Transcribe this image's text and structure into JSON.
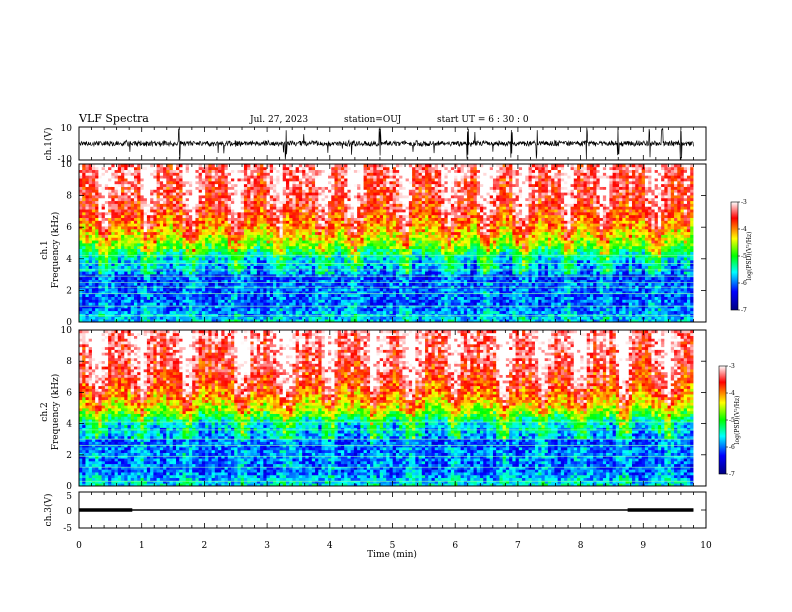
{
  "header": {
    "title": "VLF Spectra",
    "date": "Jul. 27, 2023",
    "station": "station=OUJ",
    "start": "start UT =  6 : 30 : 0"
  },
  "colors": {
    "trace": "#000000",
    "colormap": [
      "#000080",
      "#0000ff",
      "#00ffff",
      "#00ff00",
      "#ffff00",
      "#ff0000",
      "#ffffff"
    ]
  },
  "chart_data": [
    {
      "id": "ch1-waveform",
      "type": "line",
      "ylabel": "ch.1(V)",
      "ylim": [
        -10,
        10
      ],
      "yticks": [
        "10",
        "-10"
      ],
      "x": [
        0,
        0.5,
        1.0,
        1.5,
        2.0,
        2.5,
        3.0,
        3.5,
        4.0,
        4.5,
        5.0,
        5.5,
        6.0,
        6.5,
        7.0,
        7.5,
        8.0,
        8.5,
        9.0,
        9.5,
        9.8
      ],
      "y_center": [
        0,
        0,
        0,
        0,
        0,
        0,
        0,
        0,
        0,
        0,
        0,
        0,
        0,
        0,
        0,
        0,
        0,
        0,
        0,
        0,
        0
      ],
      "amplitude": 2,
      "spike_x": [
        1.6,
        3.3,
        4.8,
        6.2,
        6.9,
        7.3,
        8.1,
        8.6,
        9.1,
        9.3,
        9.6
      ]
    },
    {
      "id": "ch1-spectrogram",
      "type": "heatmap",
      "ylabel": "ch.1",
      "ylabel2": "Frequency (kHz)",
      "ylim": [
        0,
        10
      ],
      "yticks": [
        "0",
        "2",
        "4",
        "6",
        "8",
        "10"
      ],
      "colorbar": {
        "label": "log(PSD)(V²/Hz)",
        "range": [
          -7,
          -3
        ],
        "ticks": [
          "-3",
          "-4",
          "-5",
          "-6",
          "-7"
        ]
      },
      "psd_profile_freq_khz": [
        0,
        1,
        2,
        3,
        4,
        5,
        6,
        7,
        8,
        9,
        10
      ],
      "psd_profile_log": [
        -5.8,
        -6.2,
        -6.2,
        -6.3,
        -6.0,
        -5.0,
        -4.4,
        -4.0,
        -3.8,
        -3.7,
        -3.6
      ],
      "line_freqs_khz": [
        0.4,
        1.0,
        1.8,
        2.2,
        2.5,
        2.9,
        3.3,
        3.7,
        4.2
      ],
      "bursts_min": [
        0.4,
        1.1,
        1.8,
        2.5,
        3.2,
        3.9,
        4.4,
        5.2,
        5.9,
        6.5,
        7.1,
        7.8,
        8.4,
        9.2
      ]
    },
    {
      "id": "ch2-spectrogram",
      "type": "heatmap",
      "ylabel": "ch.2",
      "ylabel2": "Frequency (kHz)",
      "ylim": [
        0,
        10
      ],
      "yticks": [
        "0",
        "2",
        "4",
        "6",
        "8",
        "10"
      ],
      "colorbar": {
        "label": "log(PSD)(V²/Hz)",
        "range": [
          -7,
          -3
        ],
        "ticks": [
          "-3",
          "-4",
          "-5",
          "-6",
          "-7"
        ]
      },
      "psd_profile_freq_khz": [
        0,
        1,
        2,
        3,
        4,
        5,
        6,
        7,
        8,
        9,
        10
      ],
      "psd_profile_log": [
        -5.7,
        -6.2,
        -6.1,
        -6.2,
        -5.9,
        -4.8,
        -4.2,
        -3.9,
        -3.7,
        -3.6,
        -3.5
      ],
      "line_freqs_khz": [
        0.3,
        1.2,
        1.9,
        2.6,
        3.0,
        3.6,
        4.1
      ],
      "bursts_min": [
        0.3,
        1.0,
        1.7,
        2.6,
        3.3,
        4.0,
        4.7,
        5.3,
        6.0,
        6.8,
        7.4,
        8.0,
        8.7,
        9.4
      ]
    },
    {
      "id": "ch3-waveform",
      "type": "line",
      "ylabel": "ch.3(V)",
      "ylim": [
        -5,
        5
      ],
      "yticks": [
        "5",
        "0",
        "-5"
      ],
      "x": [
        0,
        0.85,
        8.75,
        9.8
      ],
      "y": [
        0,
        0,
        0,
        0
      ],
      "thick_ranges_min": [
        [
          0,
          0.85
        ],
        [
          8.75,
          9.8
        ]
      ]
    }
  ],
  "x_axis": {
    "label": "Time (min)",
    "range": [
      0,
      10
    ],
    "data_end": 9.8,
    "ticks": [
      "0",
      "1",
      "2",
      "3",
      "4",
      "5",
      "6",
      "7",
      "8",
      "9",
      "10"
    ]
  }
}
